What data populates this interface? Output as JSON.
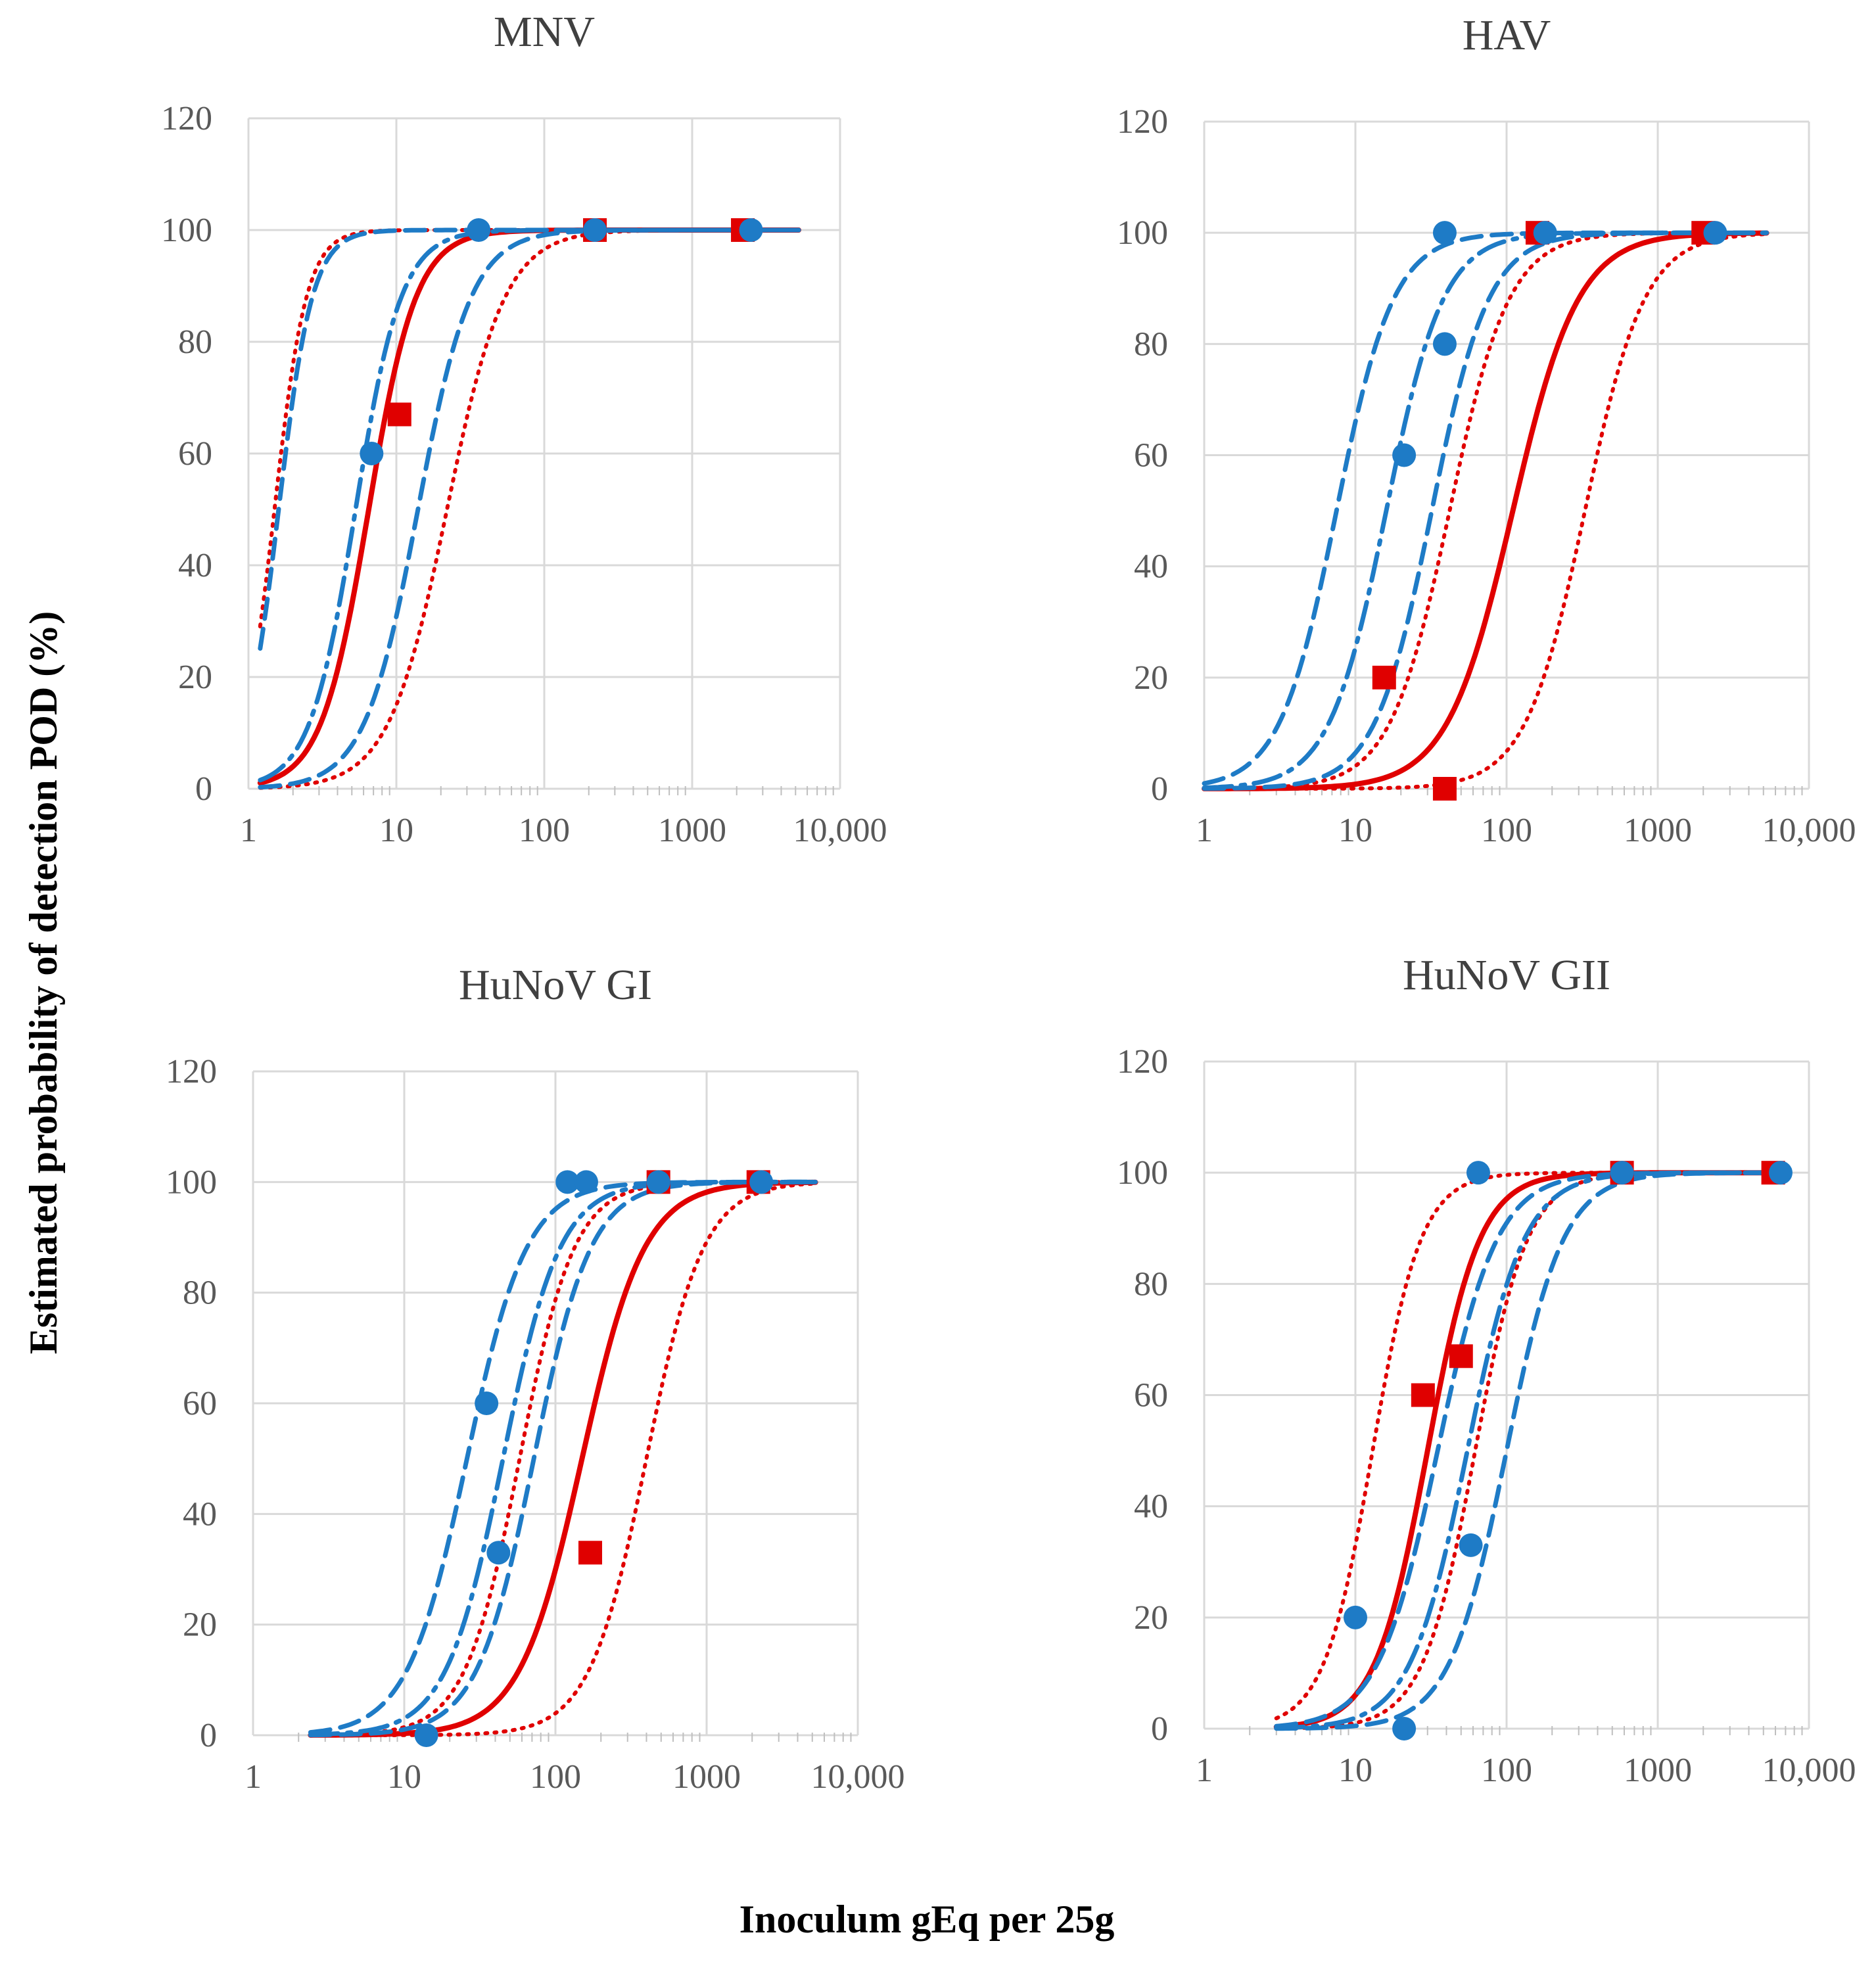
{
  "figure": {
    "ylabel": "Estimated probability of detection  POD (%)",
    "xlabel": "Inoculum gEq per 25g"
  },
  "colors": {
    "red": "#E00000",
    "blue": "#1E7BC6",
    "grid": "#D9D9D9"
  },
  "chart_data": [
    {
      "type": "line",
      "title": "MNV",
      "xscale": "log",
      "xlim": [
        1,
        10000
      ],
      "ylim": [
        0,
        120
      ],
      "xticks": [
        "1",
        "10",
        "100",
        "1000",
        "10,000"
      ],
      "yticks": [
        "0",
        "20",
        "40",
        "60",
        "80",
        "100",
        "120"
      ],
      "series": [
        {
          "name": "red fit",
          "color": "red",
          "style": "solid",
          "xstart": 1.2,
          "x50": 6.5,
          "slope": 2.7
        },
        {
          "name": "red lower bound",
          "color": "red",
          "style": "dotted",
          "xstart": 1.2,
          "x50": 22,
          "slope": 2.2
        },
        {
          "name": "red upper bound",
          "color": "red",
          "style": "dotted",
          "xstart": 1.2,
          "x50": 1.5,
          "slope": 4.0
        },
        {
          "name": "blue fit",
          "color": "blue",
          "style": "dashdot",
          "xstart": 1.2,
          "x50": 5.3,
          "slope": 2.8
        },
        {
          "name": "blue lower bound",
          "color": "blue",
          "style": "dashed",
          "xstart": 1.2,
          "x50": 14,
          "slope": 2.4
        },
        {
          "name": "blue upper bound",
          "color": "blue",
          "style": "dashed",
          "xstart": 1.2,
          "x50": 1.6,
          "slope": 3.8
        }
      ],
      "points": [
        {
          "x": 10.5,
          "y": 67,
          "color": "red",
          "marker": "square"
        },
        {
          "x": 220,
          "y": 100,
          "color": "red",
          "marker": "square"
        },
        {
          "x": 2200,
          "y": 100,
          "color": "red",
          "marker": "square"
        },
        {
          "x": 6.8,
          "y": 60,
          "color": "blue",
          "marker": "circle"
        },
        {
          "x": 36,
          "y": 100,
          "color": "blue",
          "marker": "circle"
        },
        {
          "x": 220,
          "y": 100,
          "color": "blue",
          "marker": "circle"
        },
        {
          "x": 2500,
          "y": 100,
          "color": "blue",
          "marker": "circle"
        }
      ]
    },
    {
      "type": "line",
      "title": "HAV",
      "xscale": "log",
      "xlim": [
        1,
        10000
      ],
      "ylim": [
        0,
        120
      ],
      "xticks": [
        "1",
        "10",
        "100",
        "1000",
        "10,000"
      ],
      "yticks": [
        "0",
        "20",
        "40",
        "60",
        "80",
        "100",
        "120"
      ],
      "series": [
        {
          "name": "red fit",
          "color": "red",
          "style": "solid",
          "xstart": 1,
          "x50": 110,
          "slope": 2.0
        },
        {
          "name": "red lower bound",
          "color": "red",
          "style": "dotted",
          "xstart": 1,
          "x50": 330,
          "slope": 2.2
        },
        {
          "name": "red upper bound",
          "color": "red",
          "style": "dotted",
          "xstart": 1,
          "x50": 42,
          "slope": 2.2
        },
        {
          "name": "blue fit",
          "color": "blue",
          "style": "dashdot",
          "xstart": 1,
          "x50": 16,
          "slope": 2.3
        },
        {
          "name": "blue lower bound",
          "color": "blue",
          "style": "dashed",
          "xstart": 1,
          "x50": 32,
          "slope": 2.3
        },
        {
          "name": "blue upper bound",
          "color": "blue",
          "style": "dashed",
          "xstart": 1,
          "x50": 7.5,
          "slope": 2.3
        }
      ],
      "points": [
        {
          "x": 15.5,
          "y": 20,
          "color": "red",
          "marker": "square"
        },
        {
          "x": 39,
          "y": 0,
          "color": "red",
          "marker": "square"
        },
        {
          "x": 160,
          "y": 100,
          "color": "red",
          "marker": "square"
        },
        {
          "x": 2000,
          "y": 100,
          "color": "red",
          "marker": "square"
        },
        {
          "x": 21,
          "y": 60,
          "color": "blue",
          "marker": "circle"
        },
        {
          "x": 39,
          "y": 80,
          "color": "blue",
          "marker": "circle"
        },
        {
          "x": 39,
          "y": 100,
          "color": "blue",
          "marker": "circle"
        },
        {
          "x": 180,
          "y": 100,
          "color": "blue",
          "marker": "circle"
        },
        {
          "x": 2400,
          "y": 100,
          "color": "blue",
          "marker": "circle"
        }
      ]
    },
    {
      "type": "line",
      "title": "HuNoV GI",
      "xscale": "log",
      "xlim": [
        1,
        10000
      ],
      "ylim": [
        0,
        120
      ],
      "xticks": [
        "1",
        "10",
        "100",
        "1000",
        "10,000"
      ],
      "yticks": [
        "0",
        "20",
        "40",
        "60",
        "80",
        "100",
        "120"
      ],
      "series": [
        {
          "name": "red fit",
          "color": "red",
          "style": "solid",
          "xstart": 2.4,
          "x50": 150,
          "slope": 2.1
        },
        {
          "name": "red lower bound",
          "color": "red",
          "style": "dotted",
          "xstart": 2.4,
          "x50": 400,
          "slope": 2.3
        },
        {
          "name": "red upper bound",
          "color": "red",
          "style": "dotted",
          "xstart": 2.4,
          "x50": 58,
          "slope": 2.4
        },
        {
          "name": "blue fit",
          "color": "blue",
          "style": "dashdot",
          "xstart": 2.4,
          "x50": 45,
          "slope": 2.3
        },
        {
          "name": "blue lower bound",
          "color": "blue",
          "style": "dashed",
          "xstart": 2.4,
          "x50": 72,
          "slope": 2.3
        },
        {
          "name": "blue upper bound",
          "color": "blue",
          "style": "dashed",
          "xstart": 2.4,
          "x50": 26,
          "slope": 2.2
        }
      ],
      "points": [
        {
          "x": 170,
          "y": 33,
          "color": "red",
          "marker": "square"
        },
        {
          "x": 480,
          "y": 100,
          "color": "red",
          "marker": "square"
        },
        {
          "x": 2200,
          "y": 100,
          "color": "red",
          "marker": "square"
        },
        {
          "x": 14,
          "y": 0,
          "color": "blue",
          "marker": "circle"
        },
        {
          "x": 35,
          "y": 60,
          "color": "blue",
          "marker": "circle"
        },
        {
          "x": 42,
          "y": 33,
          "color": "blue",
          "marker": "circle"
        },
        {
          "x": 120,
          "y": 100,
          "color": "blue",
          "marker": "circle"
        },
        {
          "x": 160,
          "y": 100,
          "color": "blue",
          "marker": "circle"
        },
        {
          "x": 480,
          "y": 100,
          "color": "blue",
          "marker": "circle"
        },
        {
          "x": 2300,
          "y": 100,
          "color": "blue",
          "marker": "circle"
        }
      ]
    },
    {
      "type": "line",
      "title": "HuNoV GII",
      "xscale": "log",
      "xlim": [
        1,
        10000
      ],
      "ylim": [
        0,
        120
      ],
      "xticks": [
        "1",
        "10",
        "100",
        "1000",
        "10,000"
      ],
      "yticks": [
        "0",
        "20",
        "40",
        "60",
        "80",
        "100",
        "120"
      ],
      "series": [
        {
          "name": "red fit",
          "color": "red",
          "style": "solid",
          "xstart": 3,
          "x50": 30,
          "slope": 2.5
        },
        {
          "name": "red lower bound",
          "color": "red",
          "style": "dotted",
          "xstart": 3,
          "x50": 62,
          "slope": 2.5
        },
        {
          "name": "red upper bound",
          "color": "red",
          "style": "dotted",
          "xstart": 3,
          "x50": 13,
          "slope": 2.7
        },
        {
          "name": "blue fit",
          "color": "blue",
          "style": "dashdot",
          "xstart": 3,
          "x50": 55,
          "slope": 2.3
        },
        {
          "name": "blue lower bound",
          "color": "blue",
          "style": "dashed",
          "xstart": 3,
          "x50": 100,
          "slope": 2.3
        },
        {
          "name": "blue upper bound",
          "color": "blue",
          "style": "dashed",
          "xstart": 3,
          "x50": 35,
          "slope": 2.2
        }
      ],
      "points": [
        {
          "x": 28,
          "y": 60,
          "color": "red",
          "marker": "square"
        },
        {
          "x": 50,
          "y": 67,
          "color": "red",
          "marker": "square"
        },
        {
          "x": 580,
          "y": 100,
          "color": "red",
          "marker": "square"
        },
        {
          "x": 5800,
          "y": 100,
          "color": "red",
          "marker": "square"
        },
        {
          "x": 10,
          "y": 20,
          "color": "blue",
          "marker": "circle"
        },
        {
          "x": 21,
          "y": 0,
          "color": "blue",
          "marker": "circle"
        },
        {
          "x": 58,
          "y": 33,
          "color": "blue",
          "marker": "circle"
        },
        {
          "x": 65,
          "y": 100,
          "color": "blue",
          "marker": "circle"
        },
        {
          "x": 580,
          "y": 100,
          "color": "blue",
          "marker": "circle"
        },
        {
          "x": 6500,
          "y": 100,
          "color": "blue",
          "marker": "circle"
        }
      ]
    }
  ]
}
